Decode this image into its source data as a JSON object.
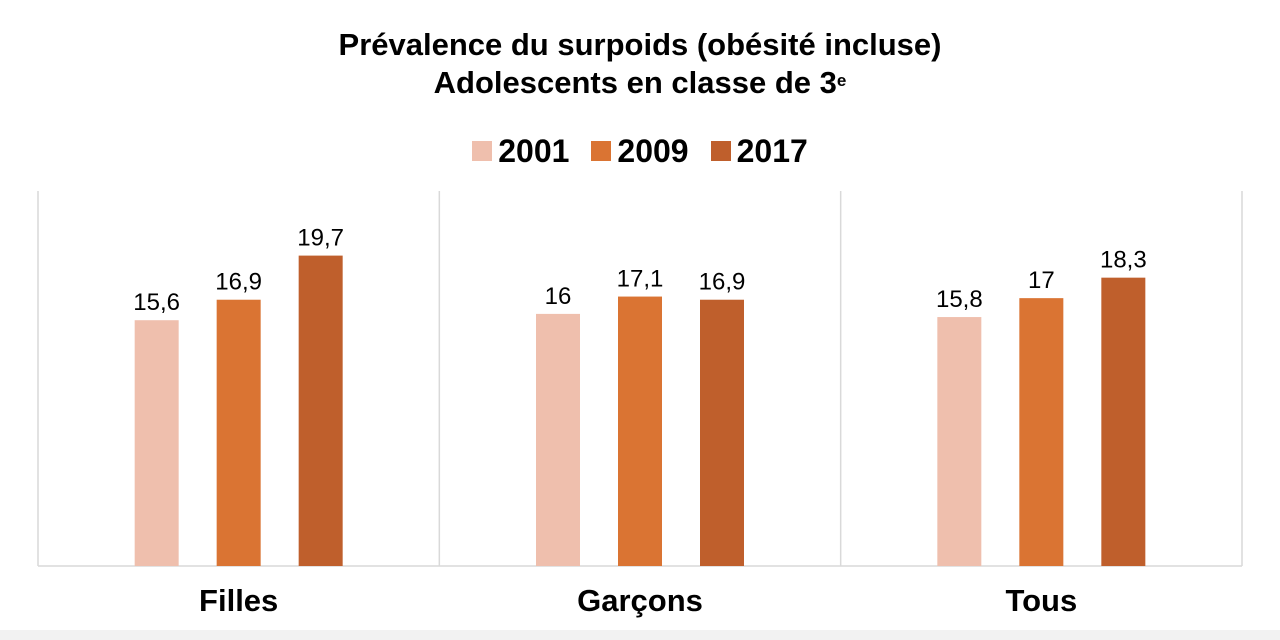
{
  "title": {
    "line1": "Prévalence du surpoids (obésité incluse)",
    "line2": "Adolescents en classe de 3",
    "line2_sup": "e"
  },
  "chart_data": {
    "type": "bar",
    "categories": [
      "Filles",
      "Garçons",
      "Tous"
    ],
    "series": [
      {
        "name": "2001",
        "color": "#EFBFAD",
        "values": [
          15.6,
          16,
          15.8
        ],
        "labels": [
          "15,6",
          "16",
          "15,8"
        ]
      },
      {
        "name": "2009",
        "color": "#DA7433",
        "values": [
          16.9,
          17.1,
          17
        ],
        "labels": [
          "16,9",
          "17,1",
          "17"
        ]
      },
      {
        "name": "2017",
        "color": "#BF5F2C",
        "values": [
          19.7,
          16.9,
          18.3
        ],
        "labels": [
          "19,7",
          "16,9",
          "18,3"
        ]
      }
    ],
    "ylim": [
      0,
      23.8
    ],
    "grid": false,
    "legend": "top-center",
    "panel_dividers": true
  }
}
